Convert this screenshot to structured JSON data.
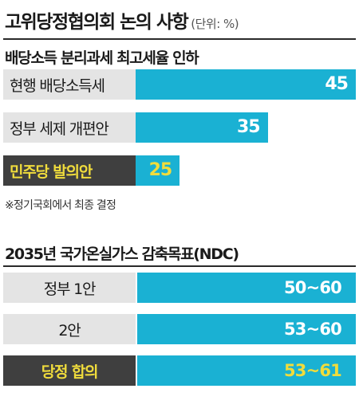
{
  "header": {
    "title": "고위당정협의회 논의 사항",
    "unit": "(단위: %)"
  },
  "note": "※정기국회에서 최종 결정",
  "chart_data": [
    {
      "type": "bar",
      "title": "배당소득 분리과세 최고세율 인하",
      "categories": [
        "현행 배당소득세",
        "정부 세제 개편안",
        "민주당 발의안"
      ],
      "values": [
        45,
        35,
        25
      ],
      "highlight": [
        false,
        false,
        true
      ],
      "xlim": [
        0,
        45
      ],
      "colors": {
        "bar": "#1ab1d3",
        "label_bg": "#e4e4e4",
        "highlight_bg": "#3f3f3f",
        "highlight_text": "#f0dc3c"
      }
    },
    {
      "type": "table",
      "title": "2035년 국가온실가스 감축목표(NDC)",
      "rows": [
        {
          "label": "정부 1안",
          "value": "50~60",
          "highlight": false
        },
        {
          "label": "2안",
          "value": "53~60",
          "highlight": false
        },
        {
          "label": "당정 합의",
          "value": "53~61",
          "highlight": true
        }
      ]
    }
  ]
}
